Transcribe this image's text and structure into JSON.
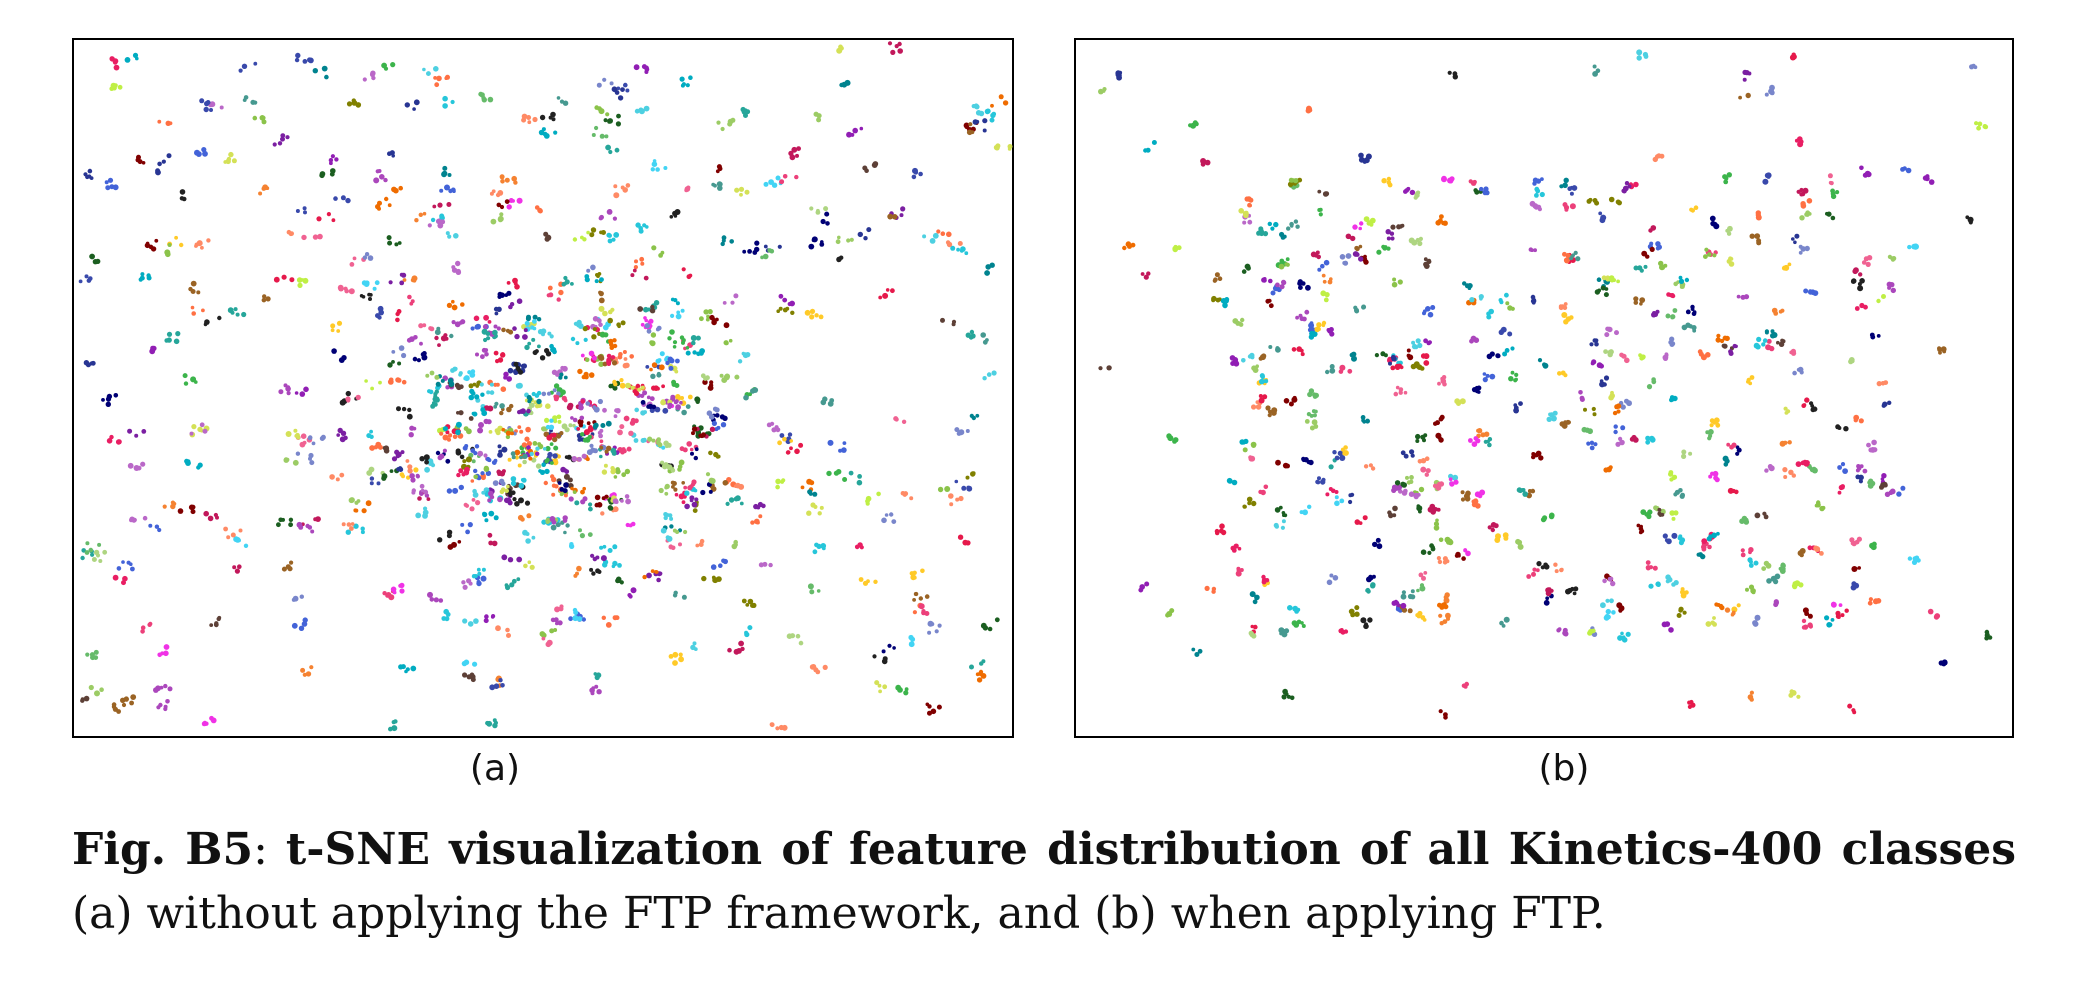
{
  "figure": {
    "panels": [
      {
        "label": "(a)",
        "cluster_count": 620,
        "spread": "wide"
      },
      {
        "label": "(b)",
        "cluster_count": 430,
        "spread": "compact"
      }
    ],
    "caption": {
      "figure_id": "Fig. B5",
      "bold_title": "t-SNE visualization of feature distribution of all Kinetics-400 classes",
      "body": " (a) without applying the FTP framework, and (b) when applying FTP."
    }
  },
  "chart_data": [
    {
      "type": "scatter",
      "title": "",
      "label": "(a)",
      "points_per_cluster": 4,
      "cluster_count": 620
    },
    {
      "type": "scatter",
      "title": "",
      "label": "(b)",
      "points_per_cluster": 4,
      "cluster_count": 430
    }
  ],
  "palette": [
    "#e6194b",
    "#3cb44b",
    "#4363d8",
    "#f58231",
    "#911eb4",
    "#42d4f4",
    "#f032e6",
    "#bfef45",
    "#469990",
    "#9a6324",
    "#800000",
    "#808000",
    "#000075",
    "#1b5e20",
    "#c2185b",
    "#7b1fa2",
    "#00838f",
    "#ef6c00",
    "#5d4037",
    "#26c6da",
    "#66bb6a",
    "#ab47bc",
    "#ffca28",
    "#283593",
    "#e91e63",
    "#8bc34a",
    "#ff7043",
    "#26a69a",
    "#3949ab",
    "#d4e157",
    "#ec407a",
    "#00acc1",
    "#212121",
    "#9ccc65",
    "#ba68c8",
    "#f06292",
    "#4dd0e1",
    "#aed581",
    "#7986cb",
    "#ff8a65"
  ]
}
